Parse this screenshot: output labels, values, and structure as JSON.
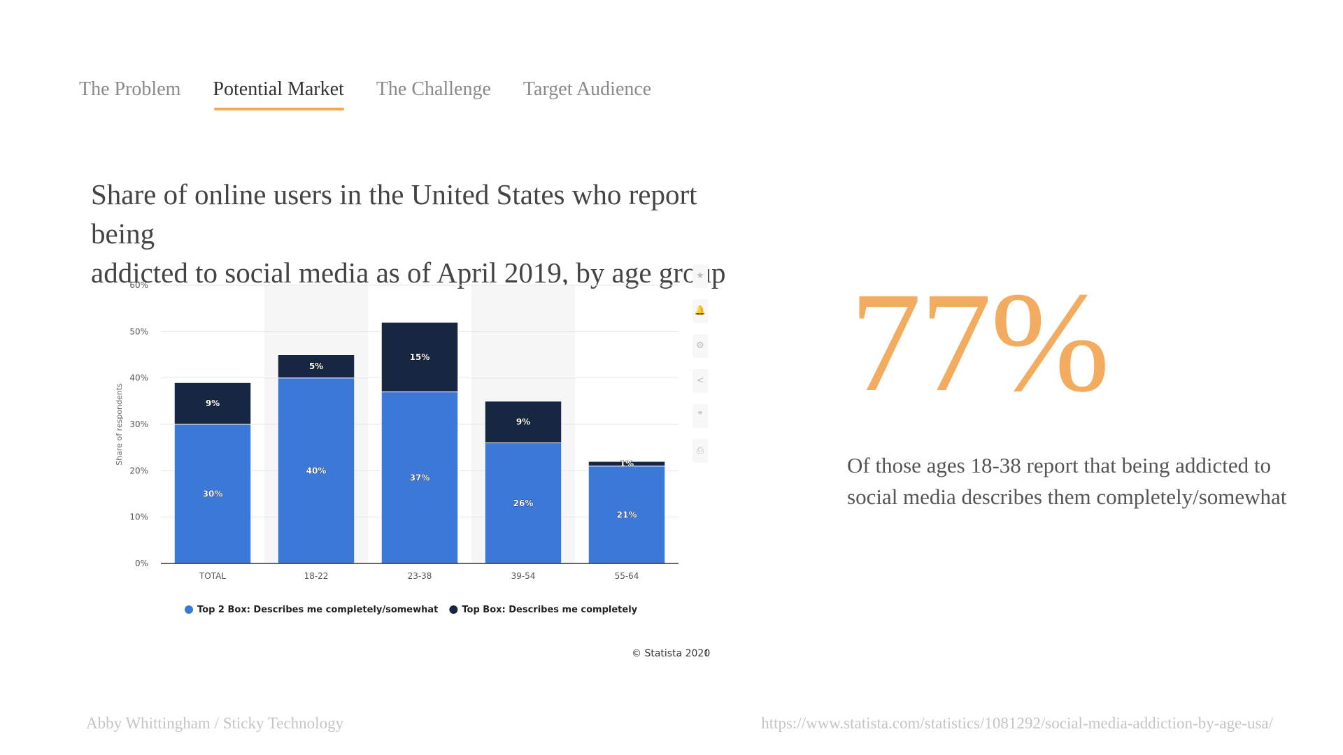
{
  "nav": {
    "tabs": [
      {
        "label": "The Problem",
        "active": false
      },
      {
        "label": "Potential Market",
        "active": true
      },
      {
        "label": "The Challenge",
        "active": false
      },
      {
        "label": "Target Audience",
        "active": false
      }
    ]
  },
  "title_lines": [
    "Share of online users in the United States who report being",
    "addicted to social media as of April 2019, by age group"
  ],
  "chart_data": {
    "type": "bar",
    "stacked": true,
    "categories": [
      "TOTAL",
      "18-22",
      "23-38",
      "39-54",
      "55-64"
    ],
    "series": [
      {
        "name": "Top 2 Box: Describes me completely/somewhat",
        "values": [
          30,
          40,
          37,
          26,
          21
        ],
        "color": "#3b78d8"
      },
      {
        "name": "Top Box: Describes me completely",
        "values": [
          9,
          5,
          15,
          9,
          1
        ],
        "color": "#172641"
      }
    ],
    "ylabel": "Share of respondents",
    "ylim": [
      0,
      60
    ],
    "yticks": [
      "0%",
      "10%",
      "20%",
      "30%",
      "40%",
      "50%",
      "60%"
    ],
    "grid": true,
    "legend_position": "bottom",
    "credit": "© Statista 2020"
  },
  "credit_mark": "⁞",
  "stat": {
    "value": "77%",
    "description": "Of those ages 18-38 report that being addicted to social media describes them completely/somewhat",
    "color": "#f2ab5f"
  },
  "footer": {
    "left": "Abby Whittingham / Sticky Technology",
    "right": "https://www.statista.com/statistics/1081292/social-media-addiction-by-age-usa/"
  },
  "toolbar_icons": [
    "star-icon",
    "bell-icon",
    "gear-icon",
    "share-icon",
    "quote-icon",
    "print-icon"
  ]
}
